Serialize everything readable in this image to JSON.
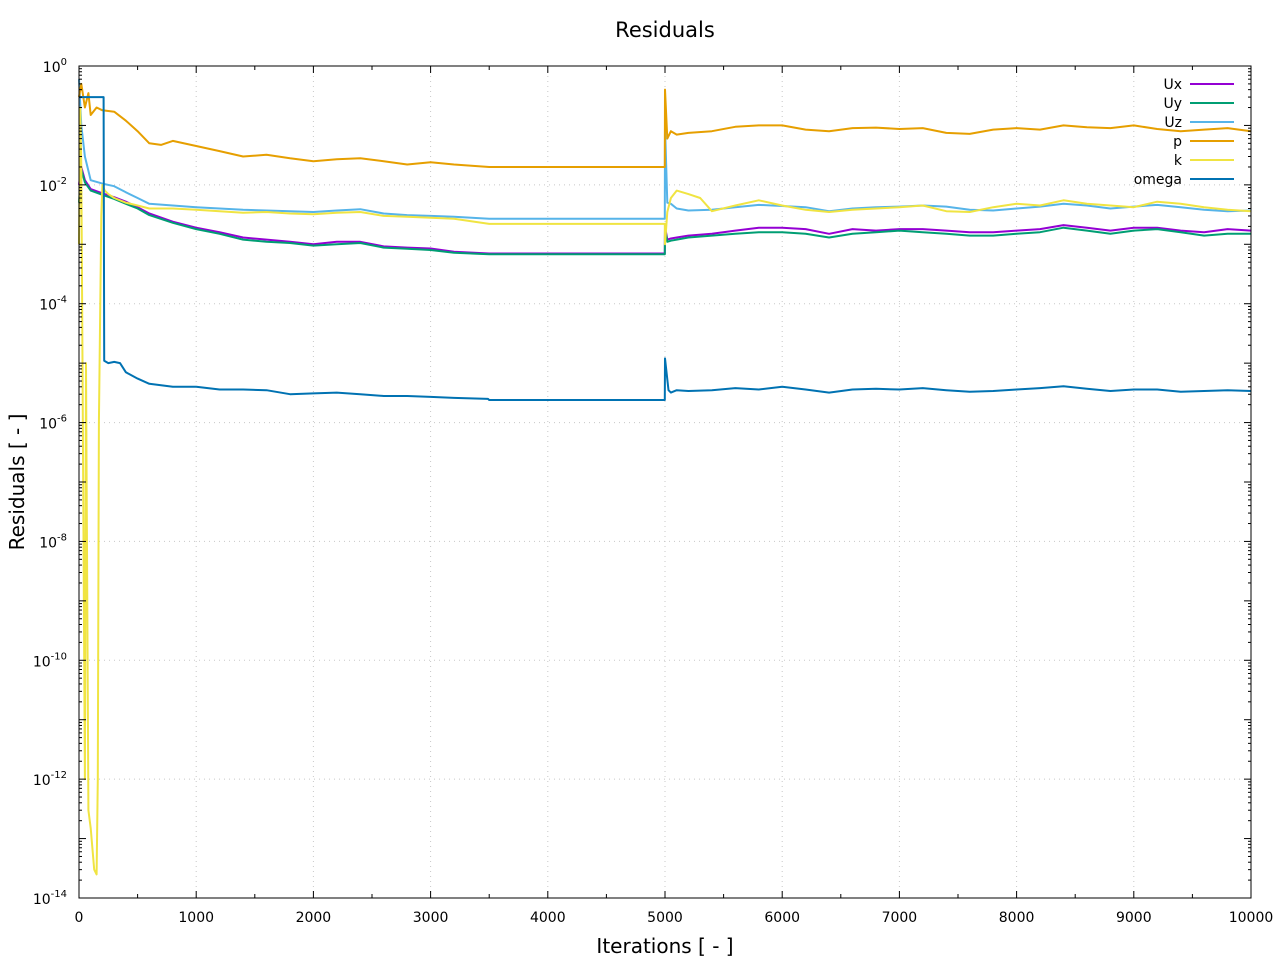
{
  "chart_data": {
    "type": "line",
    "title": "Residuals",
    "xlabel": "Iterations [ - ]",
    "ylabel": "Residuals [ - ]",
    "xlim": [
      0,
      10000
    ],
    "ylim": [
      1e-14,
      1
    ],
    "yscale": "log",
    "grid": true,
    "legend_position": "top-right",
    "x_ticks": [
      "0",
      "1000",
      "2000",
      "3000",
      "4000",
      "5000",
      "6000",
      "7000",
      "8000",
      "9000",
      "10000"
    ],
    "y_ticks": [
      {
        "base": "10",
        "exp": "0",
        "value": 1
      },
      {
        "base": "10",
        "exp": "-2",
        "value": 0.01
      },
      {
        "base": "10",
        "exp": "-4",
        "value": 0.0001
      },
      {
        "base": "10",
        "exp": "-6",
        "value": 1e-06
      },
      {
        "base": "10",
        "exp": "-8",
        "value": 1e-08
      },
      {
        "base": "10",
        "exp": "-10",
        "value": 1e-10
      },
      {
        "base": "10",
        "exp": "-12",
        "value": 1e-12
      },
      {
        "base": "10",
        "exp": "-14",
        "value": 1e-14
      }
    ],
    "series": [
      {
        "name": "Ux",
        "color": "#9400d3",
        "x": [
          0,
          20,
          50,
          100,
          200,
          300,
          400,
          500,
          600,
          800,
          1000,
          1200,
          1400,
          1600,
          1800,
          2000,
          2200,
          2400,
          2600,
          2800,
          3000,
          3200,
          3500,
          4000,
          4998,
          5000,
          5020,
          5050,
          5100,
          5200,
          5400,
          5600,
          5800,
          6000,
          6200,
          6400,
          6600,
          6800,
          7000,
          7200,
          7400,
          7600,
          7800,
          8000,
          8200,
          8400,
          8600,
          8800,
          9000,
          9200,
          9400,
          9600,
          9800,
          10000
        ],
        "y": [
          0.01,
          0.02,
          0.012,
          0.0085,
          0.0072,
          0.0062,
          0.0052,
          0.0042,
          0.0033,
          0.0024,
          0.0019,
          0.0016,
          0.0013,
          0.0012,
          0.0011,
          0.001,
          0.0011,
          0.0011,
          0.00092,
          0.00088,
          0.00085,
          0.00075,
          0.0007,
          0.0007,
          0.0007,
          0.002,
          0.0012,
          0.00125,
          0.0013,
          0.0014,
          0.0015,
          0.0017,
          0.0019,
          0.0019,
          0.0018,
          0.0015,
          0.0018,
          0.0017,
          0.0018,
          0.0018,
          0.0017,
          0.0016,
          0.0016,
          0.0017,
          0.0018,
          0.0021,
          0.0019,
          0.0017,
          0.0019,
          0.0019,
          0.0017,
          0.0016,
          0.0018,
          0.0017
        ]
      },
      {
        "name": "Uy",
        "color": "#009e73",
        "x": [
          0,
          20,
          50,
          100,
          200,
          300,
          400,
          500,
          600,
          800,
          1000,
          1200,
          1400,
          1600,
          1800,
          2000,
          2200,
          2400,
          2600,
          2800,
          3000,
          3200,
          3500,
          4000,
          4998,
          5000,
          5020,
          5050,
          5100,
          5200,
          5400,
          5600,
          5800,
          6000,
          6200,
          6400,
          6600,
          6800,
          7000,
          7200,
          7400,
          7600,
          7800,
          8000,
          8200,
          8400,
          8600,
          8800,
          9000,
          9200,
          9400,
          9600,
          9800,
          10000
        ],
        "y": [
          0.005,
          0.018,
          0.011,
          0.008,
          0.0068,
          0.0058,
          0.0048,
          0.004,
          0.0031,
          0.0023,
          0.0018,
          0.0015,
          0.0012,
          0.0011,
          0.00105,
          0.00095,
          0.001,
          0.00105,
          0.00088,
          0.00084,
          0.0008,
          0.00072,
          0.00068,
          0.00068,
          0.00068,
          0.0018,
          0.0011,
          0.00115,
          0.0012,
          0.0013,
          0.0014,
          0.0015,
          0.0016,
          0.0016,
          0.0015,
          0.0013,
          0.0015,
          0.0016,
          0.0017,
          0.0016,
          0.0015,
          0.0014,
          0.0014,
          0.0015,
          0.0016,
          0.0019,
          0.0017,
          0.0015,
          0.0017,
          0.0018,
          0.0016,
          0.0014,
          0.0015,
          0.0015
        ]
      },
      {
        "name": "Uz",
        "color": "#56b4e9",
        "x": [
          0,
          20,
          50,
          100,
          200,
          300,
          400,
          500,
          600,
          800,
          1000,
          1200,
          1400,
          1600,
          1800,
          2000,
          2200,
          2400,
          2600,
          2800,
          3000,
          3200,
          3500,
          4000,
          4998,
          5000,
          5020,
          5050,
          5100,
          5200,
          5400,
          5600,
          5800,
          6000,
          6200,
          6400,
          6600,
          6800,
          7000,
          7200,
          7400,
          7600,
          7800,
          8000,
          8200,
          8400,
          8600,
          8800,
          9000,
          9200,
          9400,
          9600,
          9800,
          10000
        ],
        "y": [
          0.6,
          0.1,
          0.03,
          0.012,
          0.0105,
          0.0095,
          0.0075,
          0.006,
          0.0048,
          0.0045,
          0.0042,
          0.004,
          0.0038,
          0.0037,
          0.0036,
          0.0035,
          0.0037,
          0.0039,
          0.0033,
          0.0031,
          0.003,
          0.0029,
          0.0027,
          0.0027,
          0.0027,
          0.1,
          0.005,
          0.0048,
          0.004,
          0.0037,
          0.0038,
          0.0042,
          0.0046,
          0.0044,
          0.0042,
          0.0036,
          0.004,
          0.0042,
          0.0043,
          0.0045,
          0.0043,
          0.0038,
          0.0037,
          0.004,
          0.0043,
          0.0048,
          0.0045,
          0.004,
          0.0043,
          0.0046,
          0.0042,
          0.0038,
          0.0036,
          0.0037
        ]
      },
      {
        "name": "p",
        "color": "#e69f00",
        "x": [
          0,
          20,
          50,
          80,
          100,
          150,
          200,
          300,
          400,
          500,
          600,
          700,
          800,
          1000,
          1200,
          1400,
          1600,
          1800,
          2000,
          2200,
          2400,
          2600,
          2800,
          3000,
          3200,
          3500,
          4000,
          4998,
          5000,
          5020,
          5050,
          5100,
          5200,
          5400,
          5600,
          5800,
          6000,
          6200,
          6400,
          6600,
          6800,
          7000,
          7200,
          7400,
          7600,
          7800,
          8000,
          8200,
          8400,
          8600,
          8800,
          9000,
          9200,
          9400,
          9600,
          9800,
          10000
        ],
        "y": [
          0.3,
          0.5,
          0.2,
          0.35,
          0.15,
          0.2,
          0.18,
          0.17,
          0.12,
          0.08,
          0.05,
          0.047,
          0.055,
          0.045,
          0.037,
          0.03,
          0.032,
          0.028,
          0.025,
          0.027,
          0.028,
          0.025,
          0.022,
          0.024,
          0.022,
          0.02,
          0.02,
          0.02,
          0.4,
          0.06,
          0.08,
          0.07,
          0.075,
          0.08,
          0.095,
          0.1,
          0.1,
          0.085,
          0.08,
          0.09,
          0.092,
          0.087,
          0.09,
          0.075,
          0.072,
          0.085,
          0.09,
          0.085,
          0.1,
          0.093,
          0.09,
          0.1,
          0.087,
          0.08,
          0.085,
          0.09,
          0.08
        ]
      },
      {
        "name": "k",
        "color": "#f0e442",
        "x": [
          0,
          10,
          20,
          30,
          50,
          60,
          80,
          100,
          130,
          150,
          160,
          170,
          190,
          200,
          220,
          250,
          300,
          400,
          500,
          600,
          800,
          1000,
          1200,
          1400,
          1600,
          1800,
          2000,
          2200,
          2400,
          2600,
          2800,
          3000,
          3200,
          3500,
          4000,
          4998,
          5000,
          5020,
          5050,
          5100,
          5200,
          5300,
          5400,
          5600,
          5800,
          6000,
          6200,
          6400,
          6600,
          6800,
          7000,
          7200,
          7400,
          7600,
          7800,
          8000,
          8200,
          8400,
          8600,
          8800,
          9000,
          9200,
          9400,
          9600,
          9800,
          10000
        ],
        "y": [
          0.001,
          0.2,
          0.02,
          1e-05,
          1e-12,
          1e-05,
          3e-13,
          1.5e-13,
          3e-14,
          2.5e-14,
          1e-12,
          1e-06,
          0.003,
          0.01,
          0.008,
          0.007,
          0.006,
          0.005,
          0.0045,
          0.004,
          0.004,
          0.0038,
          0.0036,
          0.0034,
          0.0035,
          0.0033,
          0.0032,
          0.0034,
          0.0035,
          0.003,
          0.0029,
          0.0028,
          0.0027,
          0.0022,
          0.0022,
          0.0022,
          0.001,
          0.0035,
          0.006,
          0.008,
          0.007,
          0.006,
          0.0036,
          0.0045,
          0.0055,
          0.0045,
          0.0038,
          0.0035,
          0.0038,
          0.004,
          0.0042,
          0.0045,
          0.0036,
          0.0035,
          0.0042,
          0.0048,
          0.0045,
          0.0055,
          0.0048,
          0.0045,
          0.0042,
          0.0052,
          0.0048,
          0.0042,
          0.0038,
          0.0036
        ]
      },
      {
        "name": "omega",
        "color": "#0072b2",
        "x": [
          0,
          20,
          40,
          200,
          210,
          215,
          250,
          300,
          350,
          400,
          500,
          600,
          800,
          1000,
          1200,
          1400,
          1600,
          1800,
          2000,
          2200,
          2400,
          2600,
          2800,
          3000,
          3200,
          3490,
          3500,
          4000,
          4998,
          5000,
          5030,
          5050,
          5100,
          5200,
          5400,
          5600,
          5800,
          6000,
          6200,
          6400,
          6600,
          6800,
          7000,
          7200,
          7400,
          7600,
          7800,
          8000,
          8200,
          8400,
          8600,
          8800,
          9000,
          9200,
          9400,
          9600,
          9800,
          10000
        ],
        "y": [
          0.3,
          0.3,
          0.3,
          0.3,
          0.3,
          1.1e-05,
          1e-05,
          1.05e-05,
          1e-05,
          7e-06,
          5.5e-06,
          4.5e-06,
          4e-06,
          4e-06,
          3.6e-06,
          3.6e-06,
          3.5e-06,
          3e-06,
          3.1e-06,
          3.2e-06,
          3e-06,
          2.8e-06,
          2.8e-06,
          2.7e-06,
          2.6e-06,
          2.5e-06,
          2.4e-06,
          2.4e-06,
          2.4e-06,
          1.2e-05,
          3.5e-06,
          3.2e-06,
          3.5e-06,
          3.4e-06,
          3.5e-06,
          3.8e-06,
          3.6e-06,
          4e-06,
          3.6e-06,
          3.2e-06,
          3.6e-06,
          3.7e-06,
          3.6e-06,
          3.8e-06,
          3.5e-06,
          3.3e-06,
          3.4e-06,
          3.6e-06,
          3.8e-06,
          4.1e-06,
          3.7e-06,
          3.4e-06,
          3.6e-06,
          3.6e-06,
          3.3e-06,
          3.4e-06,
          3.5e-06,
          3.4e-06
        ]
      }
    ]
  }
}
